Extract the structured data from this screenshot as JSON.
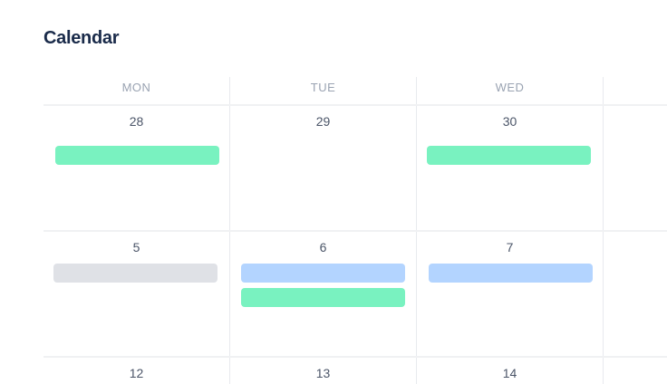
{
  "title": "Calendar",
  "weekdays": [
    "MON",
    "TUE",
    "WED"
  ],
  "weeks": [
    {
      "days": [
        "28",
        "29",
        "30"
      ]
    },
    {
      "days": [
        "5",
        "6",
        "7"
      ]
    },
    {
      "days": [
        "12",
        "13",
        "14"
      ]
    }
  ],
  "colors": {
    "green": "#79f2c0",
    "blue": "#b3d4ff",
    "gray": "#dfe1e6"
  },
  "events": [
    {
      "week": 0,
      "day": "MON",
      "color": "green"
    },
    {
      "week": 0,
      "day": "WED",
      "color": "green"
    },
    {
      "week": 1,
      "day": "MON",
      "color": "gray"
    },
    {
      "week": 1,
      "day": "TUE",
      "color": "blue"
    },
    {
      "week": 1,
      "day": "TUE",
      "color": "green"
    },
    {
      "week": 1,
      "day": "WED",
      "color": "blue"
    }
  ]
}
